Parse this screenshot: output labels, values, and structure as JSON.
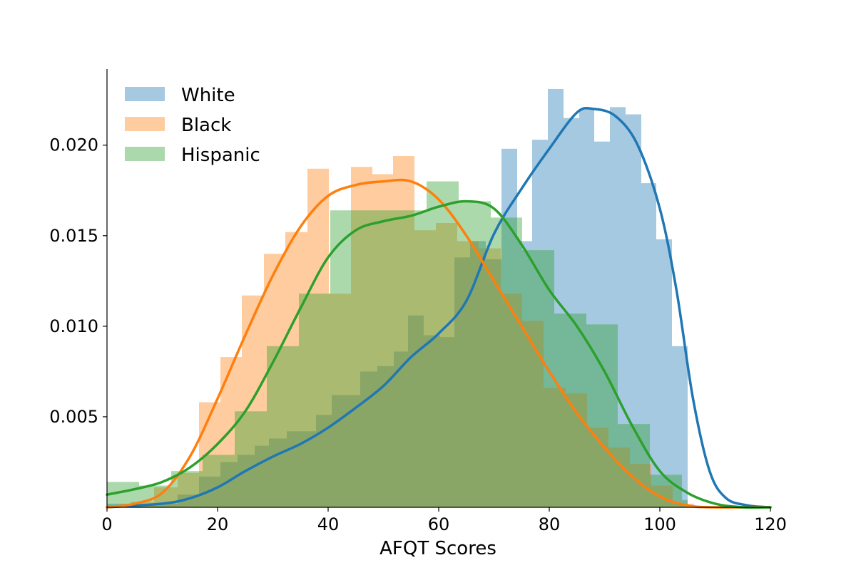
{
  "chart_data": {
    "type": "histogram",
    "xlabel": "AFQT Scores",
    "ylabel": "",
    "xlim": [
      0,
      120
    ],
    "ylim": [
      0,
      0.0242
    ],
    "x_ticks": [
      0,
      20,
      40,
      60,
      80,
      100,
      120
    ],
    "x_tick_labels": [
      "0",
      "20",
      "40",
      "60",
      "80",
      "100",
      "120"
    ],
    "y_ticks": [
      0.005,
      0.01,
      0.015,
      0.02
    ],
    "y_tick_labels": [
      "0.005",
      "0.010",
      "0.015",
      "0.020"
    ],
    "grid": false,
    "legend_position": "top-left",
    "series": [
      {
        "name": "White",
        "color": "#1f77b4",
        "hist_bins": [
          [
            0,
            13,
            0.0002
          ],
          [
            13,
            20,
            0.0007
          ],
          [
            20,
            25,
            0.0017
          ],
          [
            25,
            30,
            0.0028
          ],
          [
            30,
            35,
            0.0034
          ],
          [
            35,
            40,
            0.0038
          ],
          [
            40,
            45,
            0.0042
          ],
          [
            45,
            50,
            0.0051
          ],
          [
            50,
            55,
            0.0062
          ],
          [
            55,
            60,
            0.0075
          ],
          [
            60,
            65,
            0.0086
          ],
          [
            65,
            70,
            0.0106
          ],
          [
            70,
            75,
            0.0095
          ],
          [
            75,
            80,
            0.0138
          ],
          [
            80,
            84,
            0.0156
          ],
          [
            84,
            88,
            0.0171
          ],
          [
            88,
            92,
            0.0197
          ],
          [
            92,
            96,
            0.0201
          ],
          [
            96,
            100,
            0.02
          ],
          [
            100,
            104,
            0.0232
          ],
          [
            104,
            108,
            0.0216
          ],
          [
            108,
            112,
            0.0221
          ],
          [
            112,
            116,
            0.0203
          ],
          [
            116,
            120,
            0.0222
          ],
          [
            120,
            124,
            0.0218
          ],
          [
            124,
            128,
            0.018
          ],
          [
            128,
            130,
            0.0148
          ],
          [
            130,
            133,
            0.0089
          ]
        ],
        "kde": [
          [
            0,
            0.0
          ],
          [
            10,
            0.0002
          ],
          [
            15,
            0.0005
          ],
          [
            20,
            0.0011
          ],
          [
            25,
            0.002
          ],
          [
            30,
            0.0028
          ],
          [
            35,
            0.0035
          ],
          [
            40,
            0.0044
          ],
          [
            45,
            0.0055
          ],
          [
            50,
            0.0067
          ],
          [
            55,
            0.0083
          ],
          [
            60,
            0.0096
          ],
          [
            65,
            0.0114
          ],
          [
            70,
            0.0151
          ],
          [
            75,
            0.0176
          ],
          [
            80,
            0.0198
          ],
          [
            85,
            0.0218
          ],
          [
            88,
            0.022
          ],
          [
            92,
            0.0216
          ],
          [
            96,
            0.02
          ],
          [
            100,
            0.0165
          ],
          [
            103,
            0.012
          ],
          [
            106,
            0.006
          ],
          [
            109,
            0.002
          ],
          [
            112,
            0.0005
          ],
          [
            116,
            0.0001
          ],
          [
            120,
            0.0
          ]
        ]
      },
      {
        "name": "Black",
        "color": "#ff7f0e",
        "hist_bins": [
          [
            0,
            0.0001
          ],
          [
            0,
            0.0001
          ]
        ],
        "kde": [
          [
            0,
            0.0
          ],
          [
            5,
            0.0002
          ],
          [
            10,
            0.0008
          ],
          [
            15,
            0.0028
          ],
          [
            20,
            0.006
          ],
          [
            25,
            0.0095
          ],
          [
            30,
            0.0128
          ],
          [
            35,
            0.0155
          ],
          [
            40,
            0.0172
          ],
          [
            45,
            0.0178
          ],
          [
            50,
            0.018
          ],
          [
            55,
            0.018
          ],
          [
            60,
            0.017
          ],
          [
            65,
            0.015
          ],
          [
            70,
            0.0125
          ],
          [
            75,
            0.01
          ],
          [
            80,
            0.0075
          ],
          [
            85,
            0.0052
          ],
          [
            90,
            0.0033
          ],
          [
            95,
            0.0017
          ],
          [
            100,
            0.0006
          ],
          [
            105,
            0.0001
          ],
          [
            110,
            0.0
          ],
          [
            120,
            0.0
          ]
        ]
      },
      {
        "name": "Hispanic",
        "color": "#2ca02c",
        "hist_bins": [
          [
            0,
            0.0001
          ],
          [
            0,
            0.0001
          ]
        ],
        "kde": [
          [
            0,
            0.0007
          ],
          [
            5,
            0.001
          ],
          [
            10,
            0.0014
          ],
          [
            15,
            0.0022
          ],
          [
            20,
            0.0035
          ],
          [
            25,
            0.0053
          ],
          [
            30,
            0.008
          ],
          [
            35,
            0.011
          ],
          [
            40,
            0.0138
          ],
          [
            45,
            0.0153
          ],
          [
            50,
            0.0158
          ],
          [
            55,
            0.0161
          ],
          [
            60,
            0.0166
          ],
          [
            65,
            0.0169
          ],
          [
            70,
            0.0165
          ],
          [
            75,
            0.0145
          ],
          [
            80,
            0.012
          ],
          [
            85,
            0.01
          ],
          [
            90,
            0.0075
          ],
          [
            95,
            0.0045
          ],
          [
            100,
            0.002
          ],
          [
            105,
            0.0008
          ],
          [
            110,
            0.0002
          ],
          [
            115,
            0.0
          ],
          [
            120,
            0.0
          ]
        ]
      }
    ]
  }
}
